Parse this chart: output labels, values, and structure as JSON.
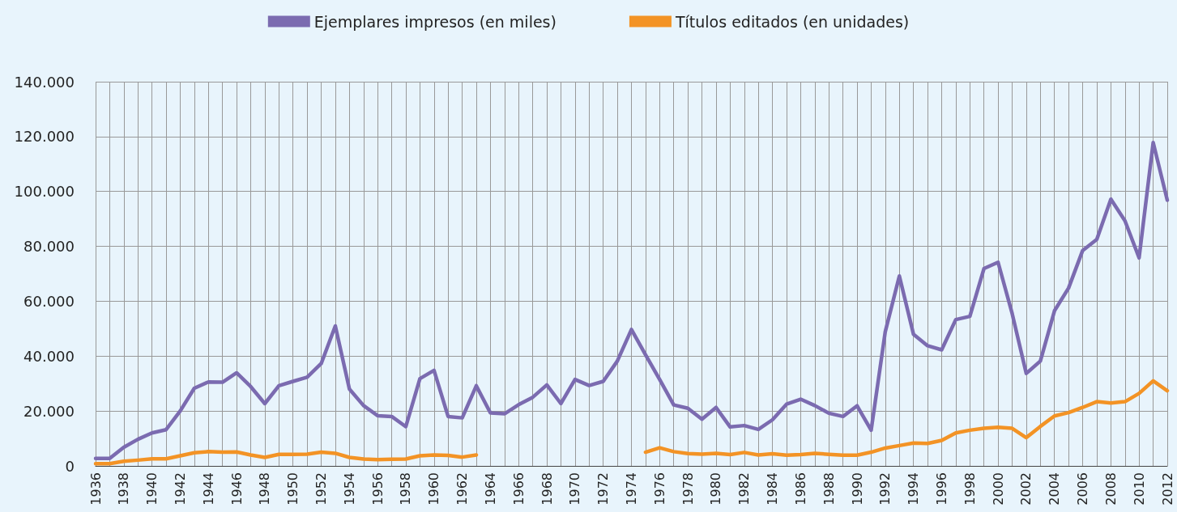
{
  "chart_data": {
    "type": "line",
    "categories": [
      "1936",
      null,
      "1938",
      null,
      "1940",
      null,
      "1942",
      null,
      "1944",
      null,
      "1946",
      null,
      "1948",
      null,
      "1950",
      null,
      "1952",
      null,
      "1954",
      null,
      "1956",
      null,
      "1958",
      null,
      "1960",
      null,
      "1962",
      null,
      "1964",
      null,
      "1966",
      null,
      "1968",
      null,
      "1970",
      null,
      "1972",
      null,
      "1974",
      null,
      "1976",
      null,
      "1978",
      null,
      "1980",
      null,
      "1982",
      null,
      "1984",
      null,
      "1986",
      null,
      "1988",
      null,
      "1990",
      null,
      "1992",
      null,
      "1994",
      null,
      "1996",
      null,
      "1998",
      null,
      "2000",
      null,
      "2002",
      null,
      "2004",
      null,
      "2006",
      null,
      "2008",
      null,
      "2010",
      null,
      "2012"
    ],
    "series": [
      {
        "name": "Ejemplares impresos (en miles)",
        "color": "#7b6bb0",
        "values": [
          2700,
          2700,
          6800,
          9700,
          12000,
          13200,
          20000,
          28300,
          30600,
          30500,
          33900,
          28900,
          22700,
          29200,
          30800,
          32300,
          37300,
          51000,
          28000,
          22000,
          18300,
          18000,
          14300,
          31800,
          34800,
          18000,
          17500,
          29200,
          19300,
          19000,
          22300,
          25000,
          29500,
          22700,
          31500,
          29300,
          30800,
          38200,
          49700,
          40500,
          31500,
          22200,
          21000,
          17000,
          21300,
          14200,
          14700,
          13300,
          16800,
          22500,
          24300,
          22000,
          19200,
          18000,
          21900,
          13000,
          48900,
          69200,
          48000,
          43800,
          42300,
          53300,
          54500,
          71900,
          74200,
          55500,
          33700,
          38200,
          56500,
          64800,
          78500,
          82500,
          97200,
          89300,
          75800,
          117800,
          96800
        ]
      },
      {
        "name": "Títulos editados (en unidades)",
        "color": "#f39325",
        "values": [
          800,
          800,
          1700,
          2100,
          2600,
          2600,
          3700,
          4800,
          5200,
          5000,
          5100,
          4000,
          3100,
          4200,
          4200,
          4300,
          5000,
          4600,
          3100,
          2500,
          2300,
          2400,
          2500,
          3700,
          4000,
          3800,
          3200,
          4000,
          null,
          null,
          null,
          null,
          null,
          null,
          null,
          null,
          null,
          null,
          null,
          5000,
          6600,
          5200,
          4500,
          4300,
          4600,
          4100,
          4900,
          4000,
          4400,
          3900,
          4100,
          4600,
          4200,
          3900,
          3900,
          5000,
          6500,
          7400,
          8300,
          8200,
          9300,
          12000,
          13000,
          13700,
          14100,
          13700,
          10300,
          14400,
          18200,
          19400,
          21300,
          23400,
          22900,
          23400,
          26400,
          31000,
          27400
        ]
      }
    ],
    "ylim": [
      0,
      140000
    ],
    "yticks": [
      {
        "value": 0,
        "label": "0"
      },
      {
        "value": 20000,
        "label": "20.000"
      },
      {
        "value": 40000,
        "label": "40.000"
      },
      {
        "value": 60000,
        "label": "60.000"
      },
      {
        "value": 80000,
        "label": "80.000"
      },
      {
        "value": 100000,
        "label": "100.000"
      },
      {
        "value": 120000,
        "label": "120.000"
      },
      {
        "value": 140000,
        "label": "140.000"
      }
    ],
    "grid": true,
    "legend": "top",
    "marker": "none",
    "line_style": "solid"
  }
}
